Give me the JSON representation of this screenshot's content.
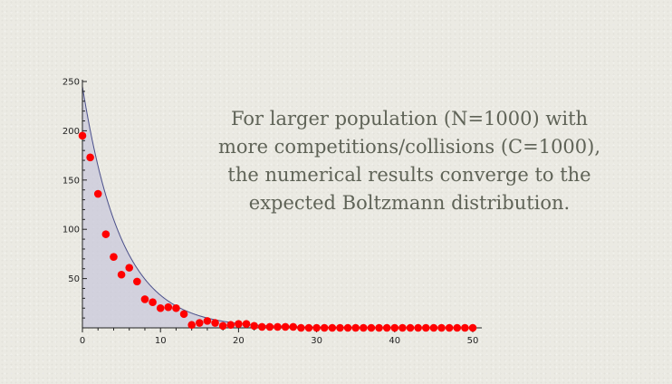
{
  "caption": {
    "lines": [
      "For larger population (N=1000) with",
      "more competitions/collisions (C=1000),",
      "the numerical results converge to the",
      "expected Boltzmann distribution."
    ]
  },
  "colors": {
    "points": "#ff0000",
    "curve": "#4a4f8a",
    "fill": "#c9c8db",
    "axis": "#222222"
  },
  "chart_data": {
    "type": "scatter",
    "title": "",
    "xlabel": "",
    "ylabel": "",
    "xlim": [
      0,
      50
    ],
    "ylim": [
      0,
      250
    ],
    "xticks": [
      0,
      10,
      20,
      30,
      40,
      50
    ],
    "yticks": [
      50,
      100,
      150,
      200,
      250
    ],
    "grid": false,
    "series": [
      {
        "kind": "points",
        "x": [
          0,
          1,
          2,
          3,
          4,
          5,
          6,
          7,
          8,
          9,
          10,
          11,
          12,
          13,
          14,
          15,
          16,
          17,
          18,
          19,
          20,
          21,
          22,
          23,
          24,
          25,
          26,
          27,
          28,
          29,
          30,
          31,
          32,
          33,
          34,
          35,
          36,
          37,
          38,
          39,
          40,
          41,
          42,
          43,
          44,
          45,
          46,
          47,
          48,
          49,
          50
        ],
        "y": [
          195,
          173,
          136,
          95,
          72,
          54,
          61,
          47,
          29,
          26,
          20,
          21,
          20,
          14,
          3,
          5,
          7,
          5,
          2,
          3,
          4,
          4,
          2,
          1,
          1,
          1,
          1,
          1,
          0,
          0,
          0,
          0,
          0,
          0,
          0,
          0,
          0,
          0,
          0,
          0,
          0,
          0,
          0,
          0,
          0,
          0,
          0,
          0,
          0,
          0,
          0
        ]
      },
      {
        "kind": "curve",
        "formula": "245*exp(-x/5)",
        "amplitude": 245,
        "mean": 5,
        "filled": true
      }
    ]
  }
}
